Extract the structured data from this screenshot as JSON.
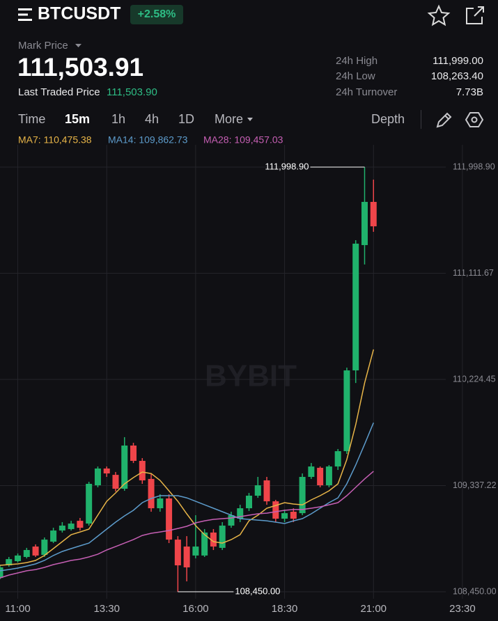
{
  "header": {
    "symbol": "BTCUSDT",
    "change": "+2.58%",
    "mark_price_label": "Mark Price",
    "mark_price": "111,503.91",
    "last_traded_label": "Last Traded Price",
    "last_traded_price": "111,503.90",
    "stats": [
      {
        "label": "24h High",
        "value": "111,999.00"
      },
      {
        "label": "24h Low",
        "value": "108,263.40"
      },
      {
        "label": "24h Turnover",
        "value": "7.73B"
      }
    ]
  },
  "tabs": [
    "Time",
    "15m",
    "1h",
    "4h",
    "1D",
    "More"
  ],
  "depth": "Depth",
  "watermark": "BYBIT",
  "chart_data": {
    "type": "candlestick",
    "x": [
      630,
      645,
      660,
      675,
      690,
      705,
      720,
      735,
      750,
      765,
      780,
      795,
      810,
      825,
      840,
      855,
      870,
      885,
      900,
      915,
      930,
      945,
      960,
      975,
      990,
      1005,
      1020,
      1035,
      1050,
      1065,
      1080,
      1095,
      1110,
      1125,
      1140,
      1155,
      1170,
      1185,
      1200,
      1215,
      1230,
      1245,
      1260
    ],
    "open": [
      108566,
      108671,
      108706,
      108741,
      108828,
      108758,
      108869,
      108962,
      108974,
      109043,
      109020,
      109340,
      109480,
      109427,
      109311,
      109672,
      109544,
      109393,
      109148,
      109230,
      108886,
      108828,
      108753,
      108753,
      108945,
      108817,
      109003,
      109061,
      109148,
      109253,
      109381,
      109206,
      109061,
      109119,
      109107,
      109410,
      109486,
      109340,
      109497,
      109625,
      110300,
      111347,
      111708
    ],
    "high": [
      108671,
      108741,
      108770,
      108817,
      108846,
      108904,
      108985,
      109032,
      109043,
      109067,
      109369,
      109497,
      109497,
      109451,
      109742,
      109695,
      109567,
      109439,
      109265,
      109265,
      108915,
      108915,
      109090,
      108974,
      108974,
      109032,
      109119,
      109177,
      109276,
      109410,
      109410,
      109218,
      109137,
      109148,
      109439,
      109526,
      109497,
      109509,
      109643,
      110323,
      111388,
      111998.9,
      111894
    ],
    "low": [
      108555,
      108659,
      108694,
      108729,
      108741,
      108741,
      108857,
      108945,
      108962,
      108962,
      109003,
      109323,
      109410,
      109288,
      109294,
      109526,
      109352,
      109119,
      109119,
      108857,
      108450,
      108537,
      108729,
      108741,
      108799,
      108799,
      108985,
      109032,
      109125,
      109235,
      109177,
      109032,
      109032,
      109032,
      109090,
      109393,
      109323,
      109323,
      109468,
      109602,
      110195,
      111185,
      111458
    ],
    "close": [
      108654,
      108723,
      108753,
      108799,
      108753,
      108886,
      108962,
      109003,
      109020,
      108985,
      109352,
      109480,
      109439,
      109311,
      109672,
      109544,
      109381,
      109148,
      109230,
      108886,
      108671,
      108654,
      108828,
      108945,
      108828,
      109003,
      109090,
      109148,
      109253,
      109340,
      109206,
      109061,
      109107,
      109061,
      109410,
      109497,
      109340,
      109497,
      109625,
      110300,
      111359,
      111708,
      111503.9
    ],
    "up_color": "#20b26c",
    "down_color": "#ef454a",
    "series": [
      {
        "name": "MA7: 110,475.38",
        "color": "#e8b548",
        "values": [
          108671,
          108677,
          108683,
          108694,
          108712,
          108753,
          108811,
          108869,
          108927,
          108950,
          108974,
          109090,
          109206,
          109276,
          109352,
          109404,
          109451,
          109438,
          109381,
          109294,
          109206,
          109102,
          109003,
          108927,
          108869,
          108857,
          108886,
          108927,
          109043,
          109090,
          109148,
          109171,
          109195,
          109183,
          109177,
          109218,
          109253,
          109294,
          109352,
          109555,
          109846,
          110195,
          110475.38
        ]
      },
      {
        "name": "MA14: 109,862.73",
        "color": "#5d9ccc",
        "values": [
          108625,
          108636,
          108648,
          108665,
          108683,
          108712,
          108753,
          108787,
          108811,
          108834,
          108857,
          108915,
          108974,
          109032,
          109084,
          109131,
          109195,
          109230,
          109253,
          109253,
          109253,
          109235,
          109206,
          109177,
          109148,
          109119,
          109090,
          109061,
          109055,
          109049,
          109043,
          109032,
          109020,
          109043,
          109061,
          109102,
          109148,
          109195,
          109235,
          109352,
          109509,
          109683,
          109862.73
        ]
      },
      {
        "name": "MA28: 109,457.03",
        "color": "#c65fb4",
        "values": [
          108566,
          108590,
          108607,
          108625,
          108636,
          108654,
          108677,
          108694,
          108712,
          108723,
          108741,
          108764,
          108799,
          108828,
          108857,
          108886,
          108921,
          108939,
          108950,
          108962,
          108979,
          108997,
          109026,
          109043,
          109055,
          109061,
          109067,
          109078,
          109090,
          109102,
          109107,
          109119,
          109131,
          109137,
          109137,
          109148,
          109160,
          109177,
          109195,
          109253,
          109323,
          109393,
          109457.03
        ]
      }
    ],
    "xlim": [
      630,
      1470
    ],
    "xticks": [
      {
        "value": 660,
        "label": "11:00"
      },
      {
        "value": 810,
        "label": "13:30"
      },
      {
        "value": 960,
        "label": "16:00"
      },
      {
        "value": 1110,
        "label": "18:30"
      },
      {
        "value": 1260,
        "label": "21:00"
      },
      {
        "value": 1410,
        "label": "23:30"
      }
    ],
    "ylim": [
      108392,
      112185
    ],
    "yticks": [
      {
        "value": 111998.9,
        "label": "111,998.90"
      },
      {
        "value": 111111.67,
        "label": "111,111.67"
      },
      {
        "value": 110224.45,
        "label": "110,224.45"
      },
      {
        "value": 109337.22,
        "label": "109,337.22"
      },
      {
        "value": 108450,
        "label": "108,450.00"
      }
    ],
    "grid": true,
    "annotations": [
      {
        "x": 1245,
        "value": 111998.9,
        "label": "111,998.90"
      },
      {
        "x": 930,
        "value": 108450,
        "label": "108,450.00"
      }
    ]
  }
}
